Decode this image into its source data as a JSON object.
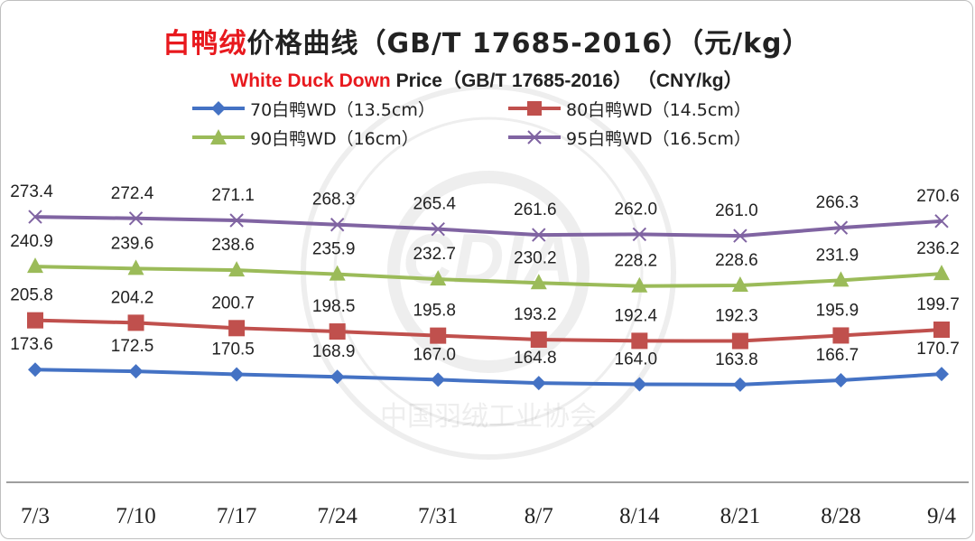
{
  "title": {
    "cn_highlight": "白鸭绒",
    "cn_rest": "价格曲线（GB/T 17685-2016）（元/kg）",
    "en_highlight": "White Duck Down",
    "en_rest": " Price（GB/T 17685-2016）  （CNY/kg）"
  },
  "watermark": {
    "text_bottom": "中国羽绒工业协会",
    "logo_text": "CDIA"
  },
  "chart_data": {
    "type": "line",
    "categories": [
      "7/3",
      "7/10",
      "7/17",
      "7/24",
      "7/31",
      "8/7",
      "8/14",
      "8/21",
      "8/28",
      "9/4"
    ],
    "ylim": [
      100,
      300
    ],
    "grid": false,
    "legend_position": "top",
    "series": [
      {
        "name": "70白鸭WD（13.5cm）",
        "color": "#4472c4",
        "marker": "diamond",
        "values": [
          173.6,
          172.5,
          170.5,
          168.9,
          167.0,
          164.8,
          164.0,
          163.8,
          166.7,
          170.7
        ],
        "labels": [
          "173.6",
          "172.5",
          "170.5",
          "168.9",
          "167.0",
          "164.8",
          "164.0",
          "163.8",
          "166.7",
          "170.7"
        ]
      },
      {
        "name": "80白鸭WD（14.5cm）",
        "color": "#c0504d",
        "marker": "square",
        "values": [
          205.8,
          204.2,
          200.7,
          198.5,
          195.8,
          193.2,
          192.4,
          192.3,
          195.9,
          199.7
        ],
        "labels": [
          "205.8",
          "204.2",
          "200.7",
          "198.5",
          "195.8",
          "193.2",
          "192.4",
          "192.3",
          "195.9",
          "199.7"
        ]
      },
      {
        "name": "90白鸭WD（16cm）",
        "color": "#9bbb59",
        "marker": "triangle",
        "values": [
          240.9,
          239.6,
          238.6,
          235.9,
          232.7,
          230.2,
          228.2,
          228.6,
          231.9,
          236.2
        ],
        "labels": [
          "240.9",
          "239.6",
          "238.6",
          "235.9",
          "232.7",
          "230.2",
          "228.2",
          "228.6",
          "231.9",
          "236.2"
        ]
      },
      {
        "name": "95白鸭WD（16.5cm）",
        "color": "#8064a2",
        "marker": "x",
        "values": [
          273.4,
          272.4,
          271.1,
          268.3,
          265.4,
          261.6,
          262.0,
          261.0,
          266.3,
          270.6
        ],
        "labels": [
          "273.4",
          "272.4",
          "271.1",
          "268.3",
          "265.4",
          "261.6",
          "262.0",
          "261.0",
          "266.3",
          "270.6"
        ]
      }
    ]
  }
}
